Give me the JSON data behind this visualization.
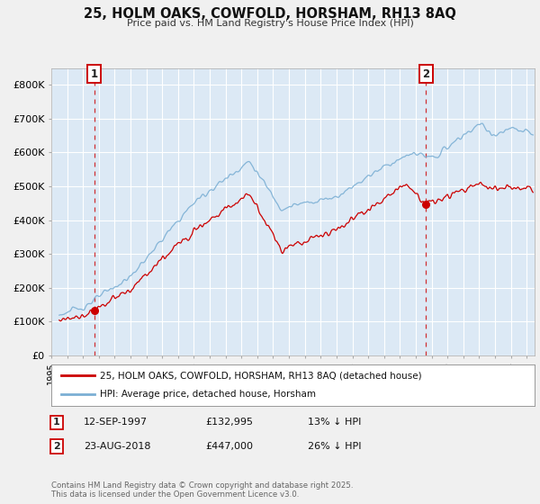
{
  "title": "25, HOLM OAKS, COWFOLD, HORSHAM, RH13 8AQ",
  "subtitle": "Price paid vs. HM Land Registry's House Price Index (HPI)",
  "legend1": "25, HOLM OAKS, COWFOLD, HORSHAM, RH13 8AQ (detached house)",
  "legend2": "HPI: Average price, detached house, Horsham",
  "line1_color": "#cc0000",
  "line2_color": "#7bafd4",
  "plot_bg_color": "#dce9f5",
  "background_color": "#f0f0f0",
  "grid_color": "#ffffff",
  "sale1_x": 1997.71,
  "sale1_y": 132995,
  "sale2_x": 2018.65,
  "sale2_y": 447000,
  "sale1_date": "12-SEP-1997",
  "sale1_price": "£132,995",
  "sale1_hpi": "13% ↓ HPI",
  "sale2_date": "23-AUG-2018",
  "sale2_price": "£447,000",
  "sale2_hpi": "26% ↓ HPI",
  "footer": "Contains HM Land Registry data © Crown copyright and database right 2025.\nThis data is licensed under the Open Government Licence v3.0.",
  "yticks": [
    0,
    100000,
    200000,
    300000,
    400000,
    500000,
    600000,
    700000,
    800000
  ],
  "ytick_labels": [
    "£0",
    "£100K",
    "£200K",
    "£300K",
    "£400K",
    "£500K",
    "£600K",
    "£700K",
    "£800K"
  ],
  "xmin": 1995,
  "xmax": 2025.5,
  "ymin": 0,
  "ymax": 850000
}
